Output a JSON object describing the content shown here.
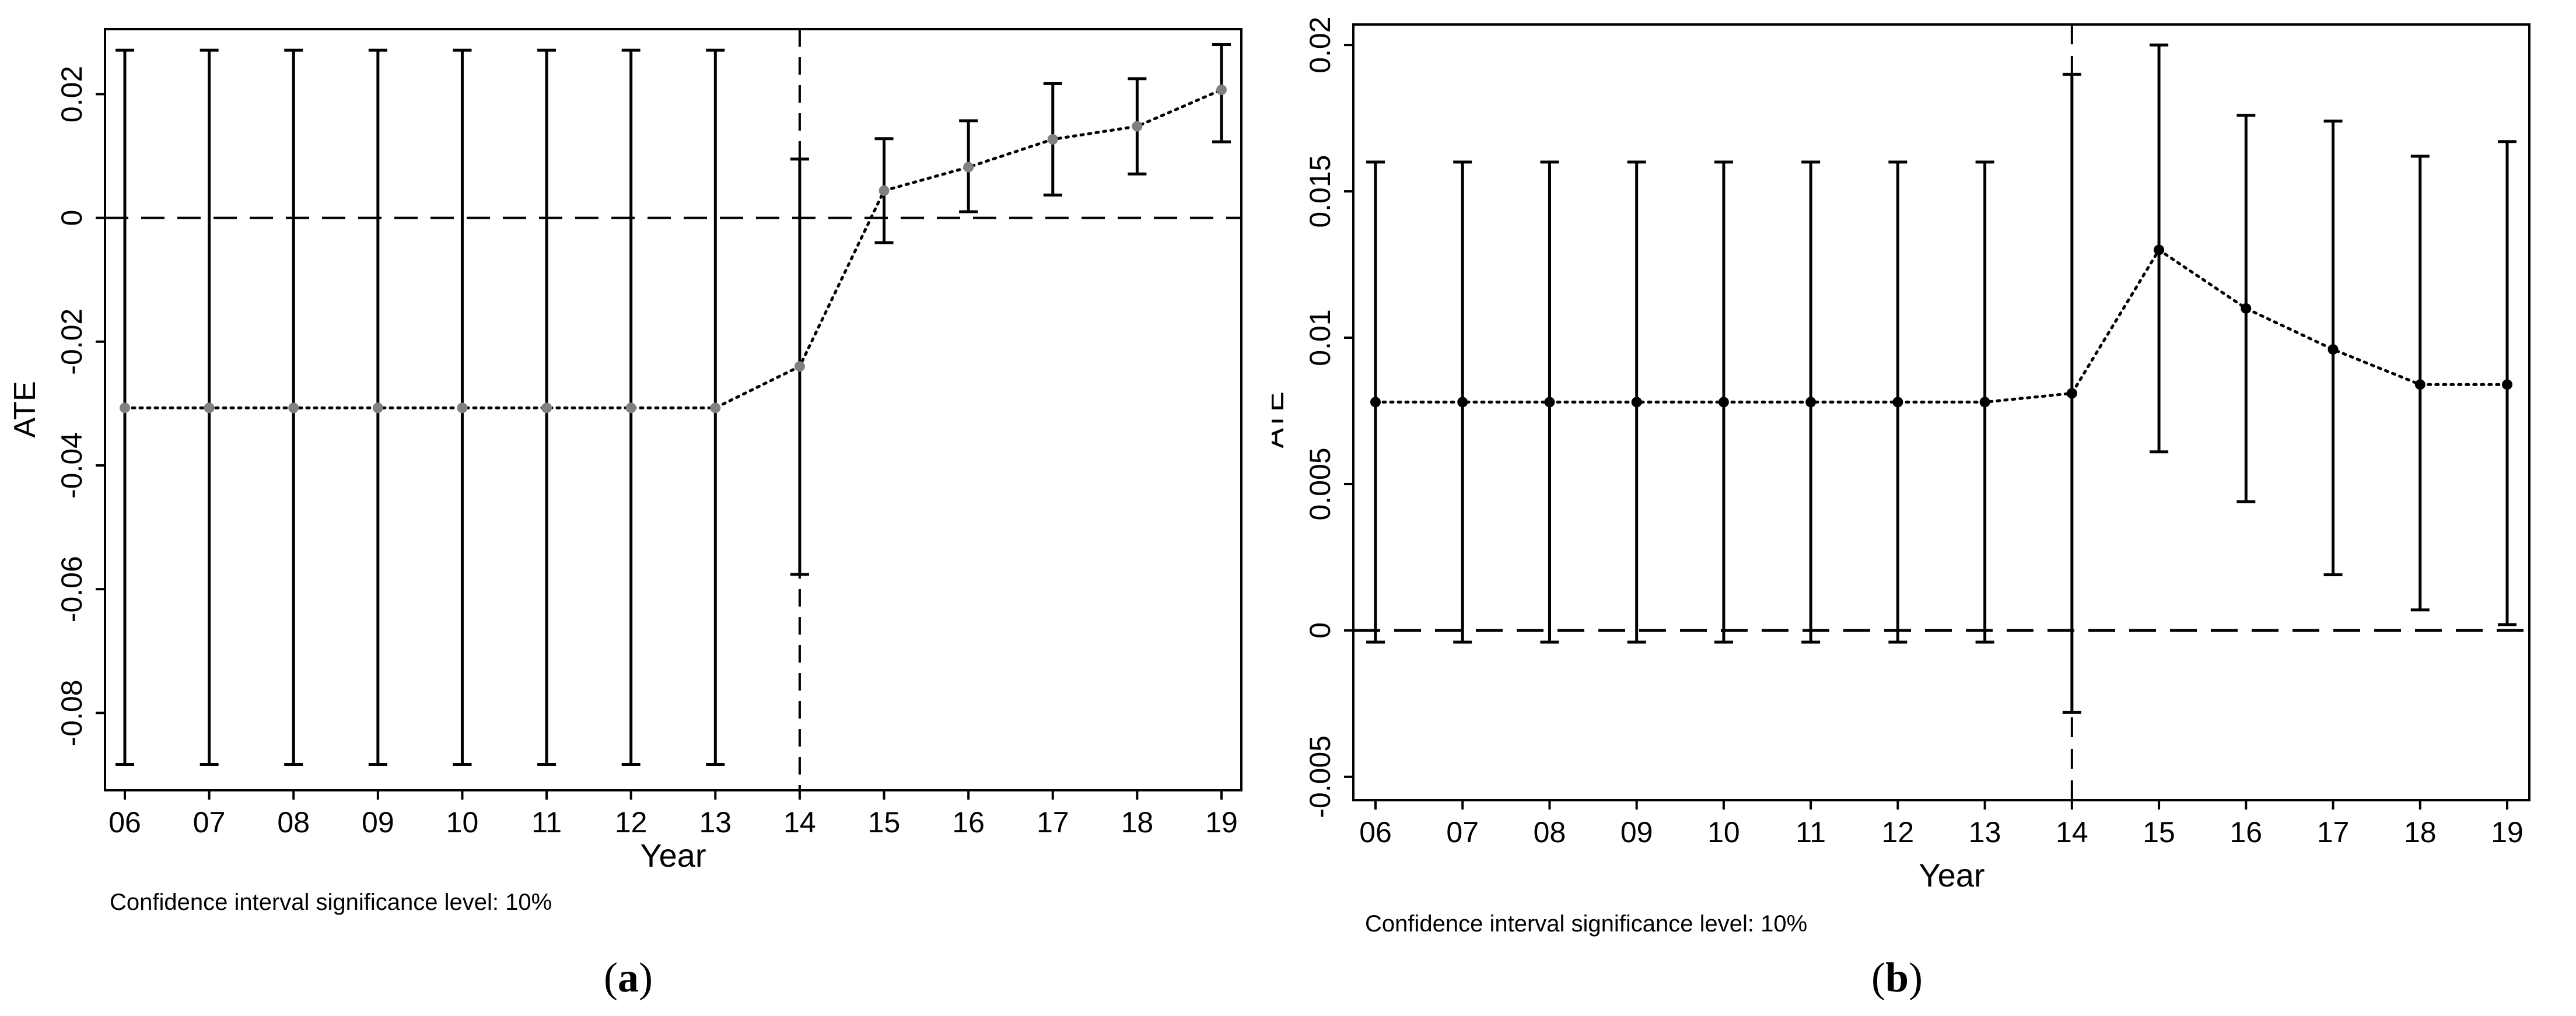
{
  "chart_data": [
    {
      "type": "line",
      "panel_label": "a",
      "x": [
        "06",
        "07",
        "08",
        "09",
        "10",
        "11",
        "12",
        "13",
        "14",
        "15",
        "16",
        "17",
        "18",
        "19"
      ],
      "series": [
        {
          "values": [
            -0.0307,
            -0.0307,
            -0.0307,
            -0.0307,
            -0.0307,
            -0.0307,
            -0.0307,
            -0.0307,
            -0.024,
            0.0044,
            0.0082,
            0.0127,
            0.0148,
            0.0207
          ],
          "ci_low": [
            -0.0883,
            -0.0883,
            -0.0883,
            -0.0883,
            -0.0883,
            -0.0883,
            -0.0883,
            -0.0883,
            -0.0576,
            -0.004,
            0.001,
            0.0037,
            0.0071,
            0.0123
          ],
          "ci_high": [
            0.0271,
            0.0271,
            0.0271,
            0.0271,
            0.0271,
            0.0271,
            0.0271,
            0.0271,
            0.0095,
            0.0128,
            0.0157,
            0.0217,
            0.0225,
            0.028
          ],
          "color": "#808080"
        }
      ],
      "xlabel": "Year",
      "ylabel": "ATE",
      "yticks": [
        "-0.08",
        "-0.06",
        "-0.04",
        "-0.02",
        "0",
        "0.02"
      ],
      "ylim": [
        -0.0925,
        0.0305
      ],
      "reference_hline": 0,
      "reference_vline": "14",
      "grid": false,
      "note": "Confidence interval significance level: 10%"
    },
    {
      "type": "line",
      "panel_label": "b",
      "x": [
        "06",
        "07",
        "08",
        "09",
        "10",
        "11",
        "12",
        "13",
        "14",
        "15",
        "16",
        "17",
        "18",
        "19"
      ],
      "series": [
        {
          "values": [
            0.0078,
            0.0078,
            0.0078,
            0.0078,
            0.0078,
            0.0078,
            0.0078,
            0.0078,
            0.0081,
            0.013,
            0.011,
            0.0096,
            0.0084,
            0.0084
          ],
          "ci_low": [
            -0.0004,
            -0.0004,
            -0.0004,
            -0.0004,
            -0.0004,
            -0.0004,
            -0.0004,
            -0.0004,
            -0.0028,
            0.0061,
            0.0044,
            0.0019,
            0.0007,
            0.0002
          ],
          "ci_high": [
            0.016,
            0.016,
            0.016,
            0.016,
            0.016,
            0.016,
            0.016,
            0.016,
            0.019,
            0.02,
            0.0176,
            0.0174,
            0.0162,
            0.0167
          ],
          "color": "#000000"
        }
      ],
      "xlabel": "Year",
      "ylabel": "ATE",
      "yticks": [
        "-0.005",
        "0",
        "0.005",
        "0.01",
        "0.015",
        "0.02"
      ],
      "ylim": [
        -0.0058,
        0.0207
      ],
      "reference_hline": 0,
      "reference_vline": "14",
      "grid": false,
      "note": "Confidence interval significance level: 10%"
    }
  ]
}
